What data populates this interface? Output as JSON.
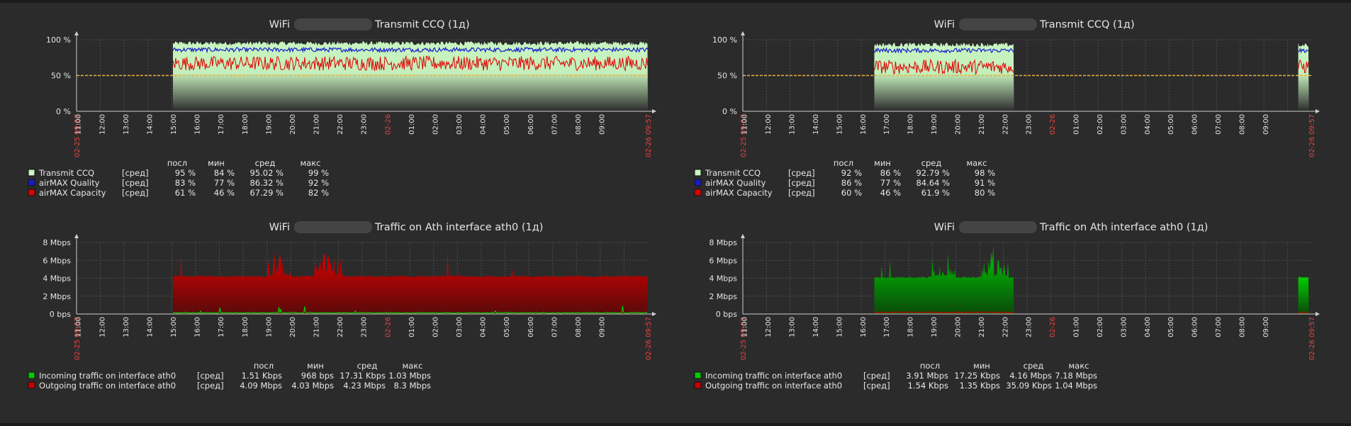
{
  "colors": {
    "background": "#2b2b2b",
    "grid": "#4d4d4d",
    "text": "#e6e6e6",
    "axis_label_highlight": "#e64545",
    "trigger_line": "#e8b23c",
    "ccq_fill": "#c8f5c0",
    "quality_line": "#1a1acc",
    "capacity_line": "#e00000",
    "incoming": "#00cc00",
    "outgoing": "#cc0000"
  },
  "x_tick_labels": [
    "02-25 09:57",
    "11:00",
    "12:00",
    "13:00",
    "14:00",
    "15:00",
    "16:00",
    "17:00",
    "18:00",
    "19:00",
    "20:00",
    "21:00",
    "22:00",
    "23:00",
    "02-26",
    "01:00",
    "02:00",
    "03:00",
    "04:00",
    "05:00",
    "06:00",
    "07:00",
    "08:00",
    "09:00",
    "02-26 09:57"
  ],
  "chart_data": [
    {
      "type": "area",
      "title_prefix": "WiFi",
      "title_suffix": "Transmit CCQ (1д)",
      "y_ticks": [
        "0 %",
        "50 %",
        "100 %"
      ],
      "ylim": [
        0,
        100
      ],
      "trigger_value": 50,
      "data_range_hours": [
        [
          4.05,
          24
        ]
      ],
      "legend_header": [
        "посл",
        "мин",
        "сред",
        "макс"
      ],
      "series": [
        {
          "name": "Transmit CCQ",
          "func": "[сред]",
          "last": "95 %",
          "min": "84 %",
          "avg": "95.02 %",
          "max": "99 %",
          "approx_value": 95
        },
        {
          "name": "airMAX Quality",
          "func": "[сред]",
          "last": "83 %",
          "min": "77 %",
          "avg": "86.32 %",
          "max": "92 %",
          "approx_value": 86
        },
        {
          "name": "airMAX Capacity",
          "func": "[сред]",
          "last": "61 %",
          "min": "46 %",
          "avg": "67.29 %",
          "max": "82 %",
          "approx_value": 67
        }
      ]
    },
    {
      "type": "area",
      "title_prefix": "WiFi",
      "title_suffix": "Transmit CCQ (1д)",
      "y_ticks": [
        "0 %",
        "50 %",
        "100 %"
      ],
      "ylim": [
        0,
        100
      ],
      "trigger_value": 50,
      "data_range_hours": [
        [
          5.55,
          11.45
        ],
        [
          23.45,
          23.9
        ]
      ],
      "legend_header": [
        "посл",
        "мин",
        "сред",
        "макс"
      ],
      "series": [
        {
          "name": "Transmit CCQ",
          "func": "[сред]",
          "last": "92 %",
          "min": "86 %",
          "avg": "92.79 %",
          "max": "98 %",
          "approx_value": 93
        },
        {
          "name": "airMAX Quality",
          "func": "[сред]",
          "last": "86 %",
          "min": "77 %",
          "avg": "84.64 %",
          "max": "91 %",
          "approx_value": 85
        },
        {
          "name": "airMAX Capacity",
          "func": "[сред]",
          "last": "60 %",
          "min": "46 %",
          "avg": "61.9 %",
          "max": "80 %",
          "approx_value": 62
        }
      ]
    },
    {
      "type": "area",
      "title_prefix": "WiFi",
      "title_suffix": "Traffic on Ath interface ath0 (1д)",
      "y_ticks": [
        "0 bps",
        "2 Mbps",
        "4 Mbps",
        "6 Mbps",
        "8 Mbps"
      ],
      "ylim": [
        0,
        8
      ],
      "unit": "Mbps",
      "data_range_hours": [
        [
          4.05,
          24
        ]
      ],
      "legend_header": [
        "посл",
        "мин",
        "сред",
        "макс"
      ],
      "series": [
        {
          "name": "Incoming traffic on interface ath0",
          "func": "[сред]",
          "last": "1.51 Kbps",
          "min": "968 bps",
          "avg": "17.31 Kbps",
          "max": "1.03 Mbps",
          "approx_value": 0.15
        },
        {
          "name": "Outgoing traffic on interface ath0",
          "func": "[сред]",
          "last": "4.09 Mbps",
          "min": "4.03 Mbps",
          "avg": "4.23 Mbps",
          "max": "8.3 Mbps",
          "approx_value": 4.2
        }
      ]
    },
    {
      "type": "area",
      "title_prefix": "WiFi",
      "title_suffix": "Traffic on Ath interface ath0 (1д)",
      "y_ticks": [
        "0 bps",
        "2 Mbps",
        "4 Mbps",
        "6 Mbps",
        "8 Mbps"
      ],
      "ylim": [
        0,
        8
      ],
      "unit": "Mbps",
      "data_range_hours": [
        [
          5.55,
          11.45
        ],
        [
          23.45,
          23.9
        ]
      ],
      "legend_header": [
        "посл",
        "мин",
        "сред",
        "макс"
      ],
      "series": [
        {
          "name": "Incoming traffic on interface ath0",
          "func": "[сред]",
          "last": "3.91 Mbps",
          "min": "17.25 Kbps",
          "avg": "4.16 Mbps",
          "max": "7.18 Mbps",
          "approx_value": 4.1
        },
        {
          "name": "Outgoing traffic on interface ath0",
          "func": "[сред]",
          "last": "1.54 Kbps",
          "min": "1.35 Kbps",
          "avg": "35.09 Kbps",
          "max": "1.04 Mbps",
          "approx_value": 0.2
        }
      ]
    }
  ]
}
